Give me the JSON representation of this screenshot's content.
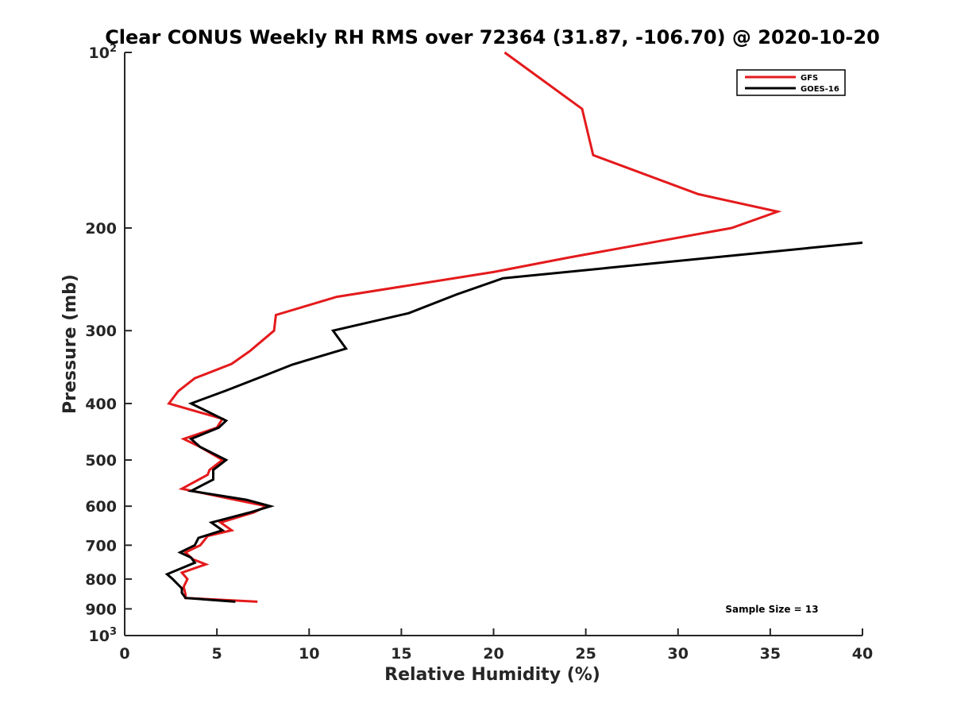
{
  "chart_data": {
    "type": "line",
    "title": "Clear CONUS Weekly RH RMS over 72364 (31.87, -106.70) @ 2020-10-20",
    "xlabel": "Relative Humidity (%)",
    "ylabel": "Pressure (mb)",
    "xlim": [
      0,
      40
    ],
    "ylim": [
      100,
      1000
    ],
    "y_scale": "log",
    "y_reversed": true,
    "grid": false,
    "legend_position": "top-right",
    "x_ticks": [
      0,
      5,
      10,
      15,
      20,
      25,
      30,
      35,
      40
    ],
    "x_tick_labels": [
      "0",
      "5",
      "10",
      "15",
      "20",
      "25",
      "30",
      "35",
      "40"
    ],
    "y_ticks": [
      100,
      200,
      300,
      400,
      500,
      600,
      700,
      800,
      900,
      1000
    ],
    "y_tick_labels": [
      {
        "base": "10",
        "exp": "2"
      },
      {
        "base": "200",
        "exp": ""
      },
      {
        "base": "300",
        "exp": ""
      },
      {
        "base": "400",
        "exp": ""
      },
      {
        "base": "500",
        "exp": ""
      },
      {
        "base": "600",
        "exp": ""
      },
      {
        "base": "700",
        "exp": ""
      },
      {
        "base": "800",
        "exp": ""
      },
      {
        "base": "900",
        "exp": ""
      },
      {
        "base": "10",
        "exp": "3"
      }
    ],
    "series": [
      {
        "name": "GFS",
        "color": "#e41a1c",
        "points": [
          [
            20.6,
            100
          ],
          [
            24.8,
            125
          ],
          [
            25.4,
            150
          ],
          [
            31.1,
            175
          ],
          [
            35.4,
            187.5
          ],
          [
            32.9,
            200
          ],
          [
            24,
            225
          ],
          [
            20,
            238
          ],
          [
            11.5,
            262.5
          ],
          [
            8.2,
            282
          ],
          [
            8.1,
            300
          ],
          [
            6.8,
            325
          ],
          [
            5.8,
            342
          ],
          [
            3.8,
            362
          ],
          [
            2.9,
            381
          ],
          [
            2.4,
            400
          ],
          [
            5.3,
            425
          ],
          [
            5,
            440
          ],
          [
            3.2,
            460
          ],
          [
            4.1,
            475
          ],
          [
            5.3,
            500
          ],
          [
            4.6,
            520
          ],
          [
            4.5,
            530
          ],
          [
            3.1,
            560
          ],
          [
            6,
            585
          ],
          [
            7.7,
            600
          ],
          [
            7,
            615
          ],
          [
            5.2,
            640
          ],
          [
            5.8,
            660
          ],
          [
            4.5,
            675
          ],
          [
            4.1,
            700
          ],
          [
            3.3,
            720
          ],
          [
            3.7,
            740
          ],
          [
            4.4,
            755
          ],
          [
            3.1,
            780
          ],
          [
            3.4,
            800
          ],
          [
            3.2,
            825
          ],
          [
            3.3,
            850
          ],
          [
            3.3,
            862
          ],
          [
            7.2,
            875
          ]
        ]
      },
      {
        "name": "GOES-16",
        "color": "#000000",
        "points": [
          [
            40,
            212
          ],
          [
            20.5,
            244
          ],
          [
            18,
            260
          ],
          [
            15.4,
            280
          ],
          [
            11.3,
            300
          ],
          [
            12,
            322
          ],
          [
            9.1,
            343
          ],
          [
            7.6,
            358
          ],
          [
            5.5,
            380
          ],
          [
            3.6,
            400
          ],
          [
            5.5,
            428
          ],
          [
            5.1,
            440
          ],
          [
            3.6,
            460
          ],
          [
            4.1,
            475
          ],
          [
            5.5,
            500
          ],
          [
            4.8,
            520
          ],
          [
            4.8,
            540
          ],
          [
            3.6,
            565
          ],
          [
            6.6,
            585
          ],
          [
            7.9,
            600
          ],
          [
            6.8,
            615
          ],
          [
            4.7,
            640
          ],
          [
            5.3,
            660
          ],
          [
            4,
            680
          ],
          [
            3.8,
            700
          ],
          [
            3,
            720
          ],
          [
            3.6,
            735
          ],
          [
            3.8,
            750
          ],
          [
            2.3,
            785
          ],
          [
            2.6,
            800
          ],
          [
            3.1,
            830
          ],
          [
            3.1,
            845
          ],
          [
            3.3,
            862
          ],
          [
            6,
            875
          ]
        ]
      }
    ],
    "annotation": "Sample Size = 13"
  }
}
